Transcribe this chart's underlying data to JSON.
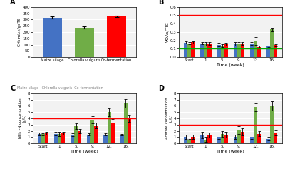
{
  "panel_A": {
    "categories": [
      "Maize silage",
      "Chlorella vulgaris",
      "Co-fermentation"
    ],
    "values": [
      315,
      235,
      325
    ],
    "errors": [
      10,
      8,
      8
    ],
    "colors": [
      "#4472C4",
      "#70AD47",
      "#FF0000"
    ],
    "ylabel": "CH₄ mLₕ₅/goTS",
    "ylim": [
      0,
      400
    ],
    "yticks": [
      0,
      50,
      100,
      150,
      200,
      250,
      300,
      350,
      400
    ]
  },
  "panel_B": {
    "time_labels": [
      "Start",
      "1.",
      "5.",
      "9.",
      "12.",
      "16."
    ],
    "blue_values": [
      0.175,
      0.165,
      0.15,
      0.16,
      0.163,
      0.128
    ],
    "green_values": [
      0.165,
      0.158,
      0.14,
      0.158,
      0.195,
      0.33
    ],
    "red_values": [
      0.178,
      0.162,
      0.158,
      0.165,
      0.12,
      0.143
    ],
    "blue_errors": [
      0.015,
      0.012,
      0.018,
      0.018,
      0.015,
      0.01
    ],
    "green_errors": [
      0.012,
      0.02,
      0.015,
      0.02,
      0.045,
      0.025
    ],
    "red_errors": [
      0.015,
      0.015,
      0.018,
      0.015,
      0.02,
      0.015
    ],
    "hline_red": 0.5,
    "hline_green": 0.1,
    "ylabel": "VOAs/TIC",
    "ylim": [
      0,
      0.6
    ],
    "yticks": [
      0.0,
      0.1,
      0.2,
      0.3,
      0.4,
      0.5,
      0.6
    ],
    "xlabel": "Time (week)"
  },
  "panel_C": {
    "time_labels": [
      "Start",
      "1.",
      "5.",
      "9.",
      "12.",
      "16."
    ],
    "blue_values": [
      1.5,
      1.55,
      1.4,
      1.45,
      1.45,
      1.4
    ],
    "green_values": [
      1.5,
      1.55,
      2.8,
      3.8,
      5.0,
      6.4
    ],
    "red_values": [
      1.65,
      1.6,
      1.95,
      2.85,
      3.35,
      4.0
    ],
    "blue_errors": [
      0.2,
      0.25,
      0.25,
      0.2,
      0.18,
      0.15
    ],
    "green_errors": [
      0.18,
      0.35,
      0.45,
      0.55,
      0.65,
      0.7
    ],
    "red_errors": [
      0.2,
      0.25,
      0.3,
      0.45,
      0.5,
      0.55
    ],
    "hline_red": 4.0,
    "ylabel": "NH₄⁺-N concentration\n(g/L)",
    "ylim": [
      0,
      8
    ],
    "yticks": [
      0,
      1,
      2,
      3,
      4,
      5,
      6,
      7,
      8
    ],
    "xlabel": "Time (week)"
  },
  "panel_D": {
    "time_labels": [
      "Start",
      "1.",
      "5.",
      "9.",
      "12.",
      "16."
    ],
    "blue_values": [
      1.05,
      1.35,
      1.05,
      1.05,
      1.05,
      0.75
    ],
    "green_values": [
      0.45,
      0.65,
      1.55,
      2.15,
      5.8,
      6.0
    ],
    "red_values": [
      1.05,
      1.35,
      1.35,
      1.85,
      1.55,
      1.75
    ],
    "blue_errors": [
      0.35,
      0.55,
      0.35,
      0.35,
      0.3,
      0.25
    ],
    "green_errors": [
      0.25,
      0.35,
      0.45,
      0.65,
      0.65,
      0.7
    ],
    "red_errors": [
      0.3,
      0.4,
      0.45,
      0.55,
      0.4,
      0.45
    ],
    "hline_red": 3.0,
    "ylabel": "Acetate concentration\n(g/L)",
    "ylim": [
      0,
      8
    ],
    "yticks": [
      0,
      1,
      2,
      3,
      4,
      5,
      6,
      7,
      8
    ],
    "xlabel": "Time (week)"
  },
  "colors": {
    "blue": "#4472C4",
    "green": "#70AD47",
    "red": "#FF0000"
  },
  "bar_width": 0.22,
  "background": "#FFFFFF",
  "plot_bg": "#F2F2F2"
}
